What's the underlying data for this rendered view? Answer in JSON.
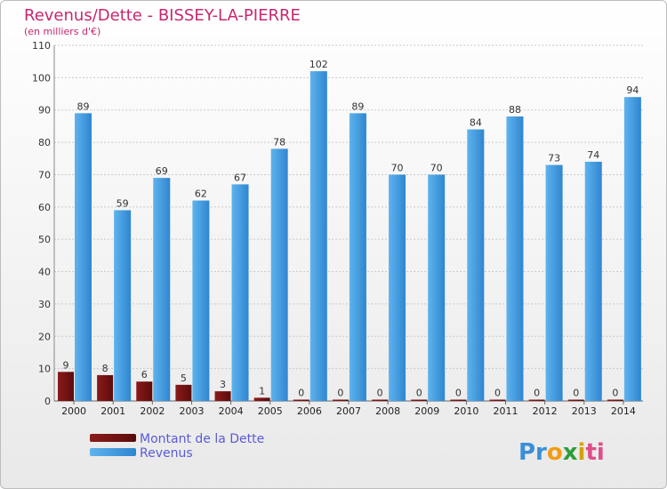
{
  "chart_data": {
    "type": "bar",
    "title": "Revenus/Dette - BISSEY-LA-PIERRE",
    "subtitle": "(en milliers d'€)",
    "categories": [
      "2000",
      "2001",
      "2002",
      "2003",
      "2004",
      "2005",
      "2006",
      "2007",
      "2008",
      "2009",
      "2010",
      "2011",
      "2012",
      "2013",
      "2014"
    ],
    "series": [
      {
        "name": "Montant de la Dette",
        "color": "#7a1414",
        "values": [
          9,
          8,
          6,
          5,
          3,
          1,
          0,
          0,
          0,
          0,
          0,
          0,
          0,
          0,
          0
        ]
      },
      {
        "name": "Revenus",
        "color": "#4aa3e6",
        "values": [
          89,
          59,
          69,
          62,
          67,
          78,
          102,
          89,
          70,
          70,
          84,
          88,
          73,
          74,
          94
        ]
      }
    ],
    "ylim": [
      0,
      110
    ],
    "yticks": [
      0,
      10,
      20,
      30,
      40,
      50,
      60,
      70,
      80,
      90,
      100,
      110
    ],
    "grid": true,
    "legend": "bottom-left"
  },
  "branding": {
    "logo_text": "Proxiti"
  }
}
